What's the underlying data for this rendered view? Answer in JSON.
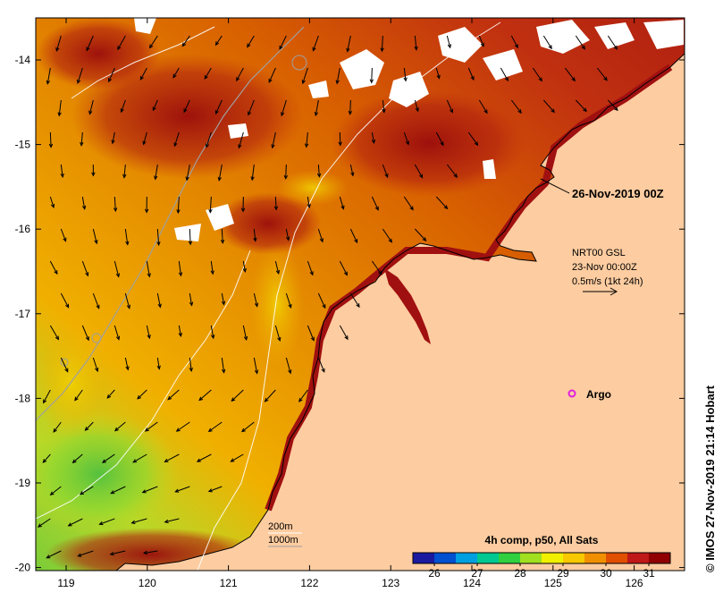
{
  "map": {
    "date_label": "26-Nov-2019 00Z",
    "current_source": "NRT00 GSL",
    "current_time": "23-Nov 00:00Z",
    "current_scale": "0.5m/s (1kt 24h)",
    "marker_label": "Argo",
    "depth_contours": [
      "200m",
      "1000m"
    ],
    "copyright": "© IMOS 27-Nov-2019 21:14 Hobart",
    "lon_ticks": [
      "119",
      "120",
      "121",
      "122",
      "123",
      "124",
      "125",
      "126"
    ],
    "lat_ticks": [
      "-14",
      "-15",
      "-16",
      "-17",
      "-18",
      "-19",
      "-20"
    ]
  },
  "colorbar": {
    "title": "4h comp, p50, All Sats",
    "ticks": [
      "26",
      "27",
      "28",
      "29",
      "30",
      "31"
    ],
    "min": 25.5,
    "max": 31.5,
    "colors": [
      "#1a1aa0",
      "#0050d0",
      "#00a0e0",
      "#00c890",
      "#30d040",
      "#a0e020",
      "#f0f000",
      "#f8c800",
      "#f09000",
      "#e05000",
      "#c01818",
      "#900000"
    ]
  },
  "colors": {
    "land": "#fdcca0",
    "argo_marker": "#e020e0",
    "warm_core": "#a01010",
    "sea_mid": "#e07000",
    "cool_sea": "#80d030"
  }
}
